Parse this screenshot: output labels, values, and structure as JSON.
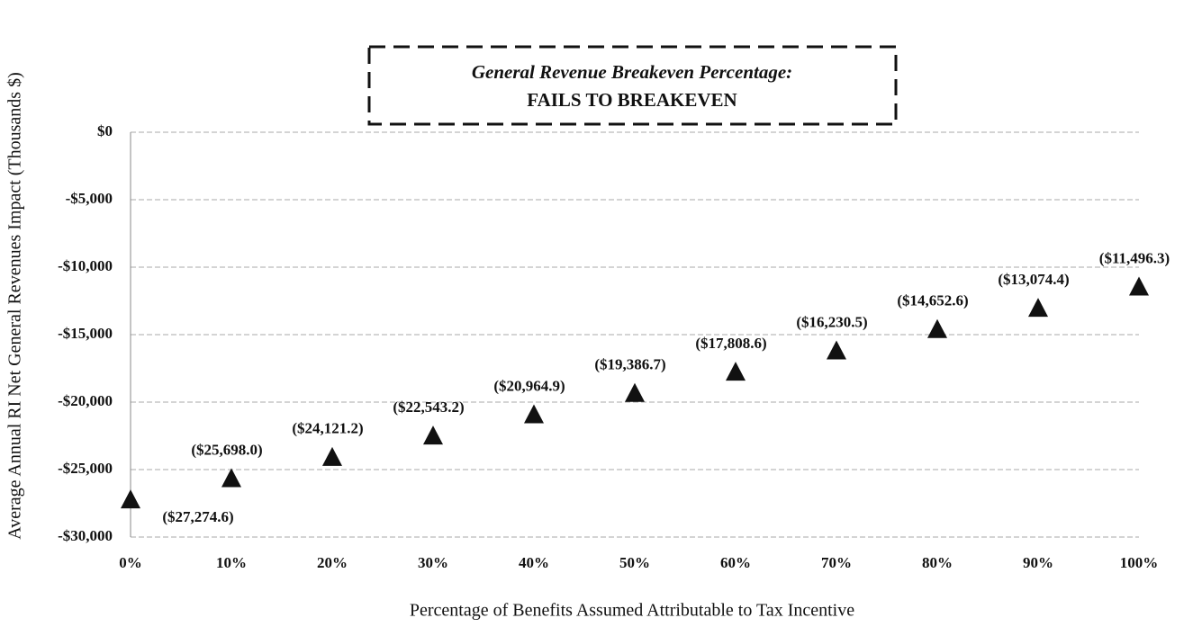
{
  "chart_data": {
    "type": "scatter",
    "x_label": "Percentage of Benefits Assumed Attributable to Tax Incentive",
    "y_label": "Average Annual RI Net General Revenues Impact (Thousands $)",
    "annotation": {
      "title": "General Revenue Breakeven Percentage:",
      "text": "FAILS TO BREAKEVEN"
    },
    "x": [
      0,
      10,
      20,
      30,
      40,
      50,
      60,
      70,
      80,
      90,
      100
    ],
    "series": [
      {
        "color": "#111111",
        "values": [
          -27274.6,
          -25698.0,
          -24121.2,
          -22543.2,
          -20964.9,
          -19386.7,
          -17808.6,
          -16230.5,
          -14652.6,
          -13074.4,
          -11496.3
        ],
        "value_labels": [
          "($27,274.6)",
          "($25,698.0)",
          "($24,121.2)",
          "($22,543.2)",
          "($20,964.9)",
          "($19,386.7)",
          "($17,808.6)",
          "($16,230.5)",
          "($14,652.6)",
          "($13,074.4)",
          "($11,496.3)"
        ]
      }
    ],
    "xlim": [
      0,
      100
    ],
    "xticks": [
      {
        "value": 0,
        "label": "0%"
      },
      {
        "value": 10,
        "label": "10%"
      },
      {
        "value": 20,
        "label": "20%"
      },
      {
        "value": 30,
        "label": "30%"
      },
      {
        "value": 40,
        "label": "40%"
      },
      {
        "value": 50,
        "label": "50%"
      },
      {
        "value": 60,
        "label": "60%"
      },
      {
        "value": 70,
        "label": "70%"
      },
      {
        "value": 80,
        "label": "80%"
      },
      {
        "value": 90,
        "label": "90%"
      },
      {
        "value": 100,
        "label": "100%"
      }
    ],
    "ylim": [
      -30000,
      0
    ],
    "yticks": [
      {
        "value": 0,
        "label": "$0"
      },
      {
        "value": -5000,
        "label": "-$5,000"
      },
      {
        "value": -10000,
        "label": "-$10,000"
      },
      {
        "value": -15000,
        "label": "-$15,000"
      },
      {
        "value": -20000,
        "label": "-$20,000"
      },
      {
        "value": -25000,
        "label": "-$25,000"
      },
      {
        "value": -30000,
        "label": "-$30,000"
      }
    ],
    "grid": true
  }
}
